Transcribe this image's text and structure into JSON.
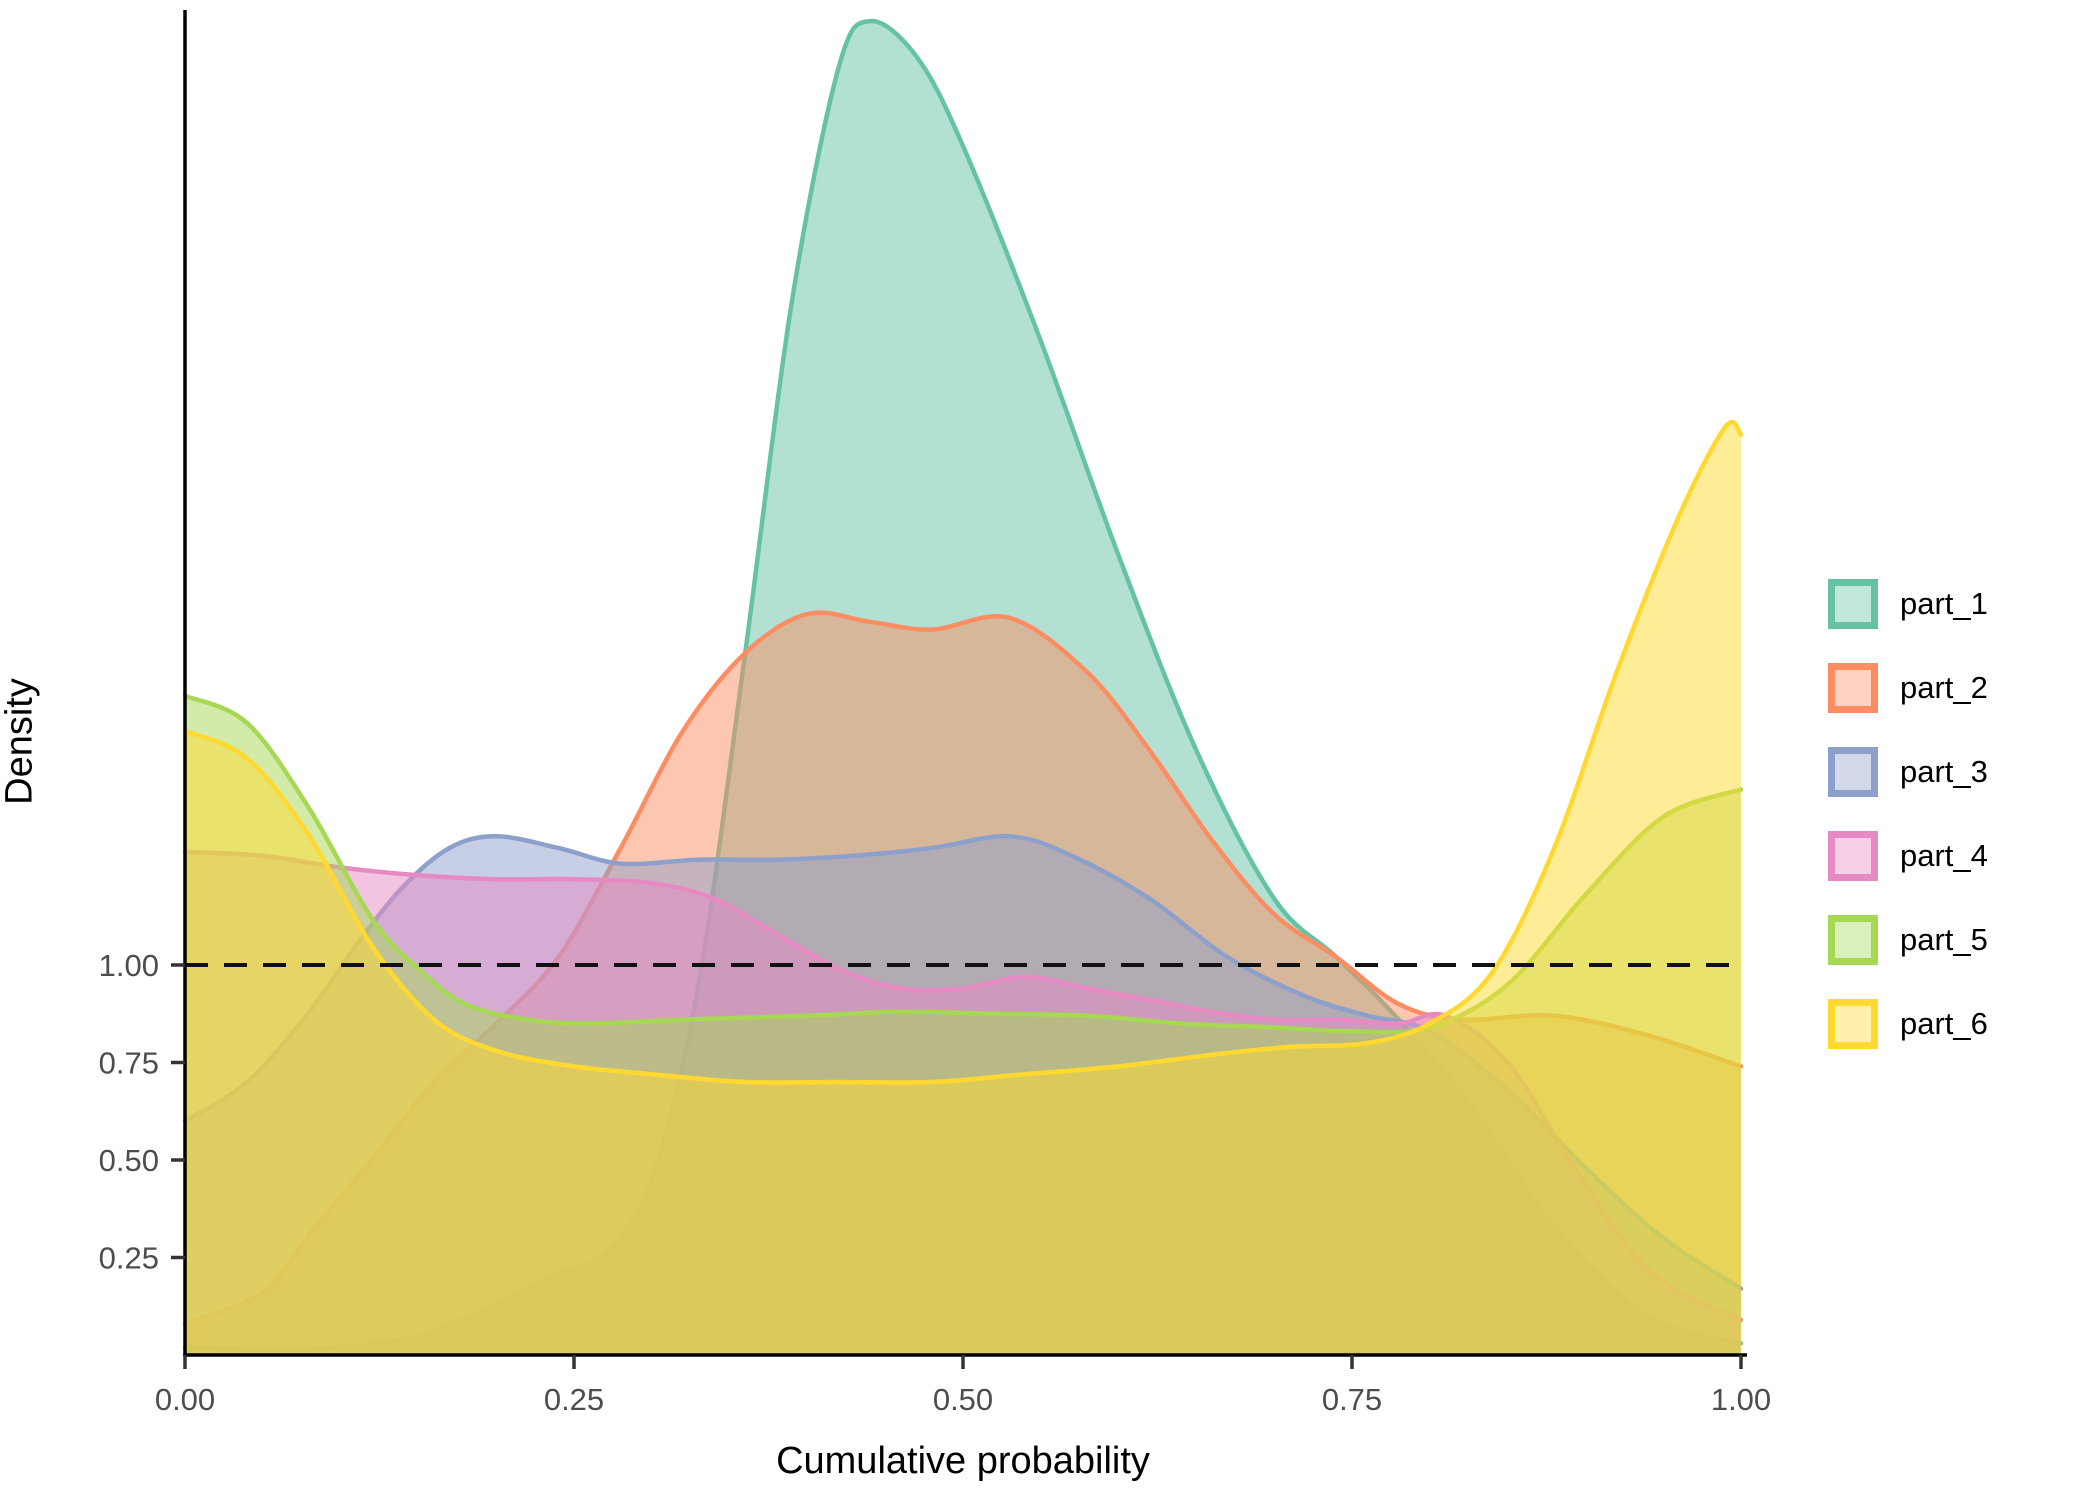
{
  "chart_data": {
    "type": "area",
    "subtype": "density-overlay",
    "title": "",
    "xlabel": "Cumulative probability",
    "ylabel": "Density",
    "xlim": [
      0,
      1
    ],
    "ylim": [
      0,
      3.47
    ],
    "grid": false,
    "legend_position": "right",
    "x_ticks": [
      {
        "value": 0.0,
        "label": "0.00"
      },
      {
        "value": 0.25,
        "label": "0.25"
      },
      {
        "value": 0.5,
        "label": "0.50"
      },
      {
        "value": 0.75,
        "label": "0.75"
      },
      {
        "value": 1.0,
        "label": "1.00"
      }
    ],
    "y_ticks": [
      {
        "value": 0.25,
        "label": "0.25"
      },
      {
        "value": 0.5,
        "label": "0.50"
      },
      {
        "value": 0.75,
        "label": "0.75"
      },
      {
        "value": 1.0,
        "label": "1.00"
      }
    ],
    "reference_hline": {
      "y": 1.0,
      "style": "dashed",
      "color": "#111111"
    },
    "fill_alpha": 0.5,
    "series": [
      {
        "name": "part_1",
        "color": "#66C2A5",
        "points": [
          [
            0,
            0.02
          ],
          [
            0.05,
            0.015
          ],
          [
            0.1,
            0.02
          ],
          [
            0.15,
            0.05
          ],
          [
            0.2,
            0.13
          ],
          [
            0.24,
            0.21
          ],
          [
            0.27,
            0.26
          ],
          [
            0.3,
            0.45
          ],
          [
            0.33,
            0.95
          ],
          [
            0.36,
            1.8
          ],
          [
            0.39,
            2.7
          ],
          [
            0.42,
            3.3
          ],
          [
            0.44,
            3.42
          ],
          [
            0.47,
            3.33
          ],
          [
            0.5,
            3.1
          ],
          [
            0.55,
            2.6
          ],
          [
            0.6,
            2.05
          ],
          [
            0.65,
            1.55
          ],
          [
            0.7,
            1.17
          ],
          [
            0.74,
            1.02
          ],
          [
            0.78,
            0.86
          ],
          [
            0.83,
            0.62
          ],
          [
            0.88,
            0.33
          ],
          [
            0.94,
            0.1
          ],
          [
            1.0,
            0.03
          ]
        ]
      },
      {
        "name": "part_2",
        "color": "#FC8D62",
        "points": [
          [
            0,
            0.08
          ],
          [
            0.05,
            0.16
          ],
          [
            0.08,
            0.31
          ],
          [
            0.12,
            0.5
          ],
          [
            0.16,
            0.7
          ],
          [
            0.2,
            0.85
          ],
          [
            0.24,
            1.02
          ],
          [
            0.28,
            1.3
          ],
          [
            0.32,
            1.6
          ],
          [
            0.36,
            1.8
          ],
          [
            0.4,
            1.9
          ],
          [
            0.44,
            1.88
          ],
          [
            0.48,
            1.86
          ],
          [
            0.53,
            1.89
          ],
          [
            0.58,
            1.75
          ],
          [
            0.62,
            1.55
          ],
          [
            0.66,
            1.32
          ],
          [
            0.7,
            1.13
          ],
          [
            0.74,
            1.02
          ],
          [
            0.78,
            0.9
          ],
          [
            0.82,
            0.86
          ],
          [
            0.88,
            0.87
          ],
          [
            0.94,
            0.82
          ],
          [
            1.0,
            0.74
          ]
        ]
      },
      {
        "name": "part_3",
        "color": "#8DA0CB",
        "points": [
          [
            0,
            0.6
          ],
          [
            0.04,
            0.7
          ],
          [
            0.08,
            0.88
          ],
          [
            0.11,
            1.05
          ],
          [
            0.14,
            1.2
          ],
          [
            0.17,
            1.3
          ],
          [
            0.2,
            1.33
          ],
          [
            0.24,
            1.3
          ],
          [
            0.28,
            1.26
          ],
          [
            0.33,
            1.27
          ],
          [
            0.38,
            1.27
          ],
          [
            0.43,
            1.28
          ],
          [
            0.48,
            1.3
          ],
          [
            0.53,
            1.33
          ],
          [
            0.57,
            1.28
          ],
          [
            0.62,
            1.17
          ],
          [
            0.67,
            1.02
          ],
          [
            0.72,
            0.92
          ],
          [
            0.76,
            0.87
          ],
          [
            0.8,
            0.83
          ],
          [
            0.85,
            0.68
          ],
          [
            0.9,
            0.48
          ],
          [
            0.95,
            0.3
          ],
          [
            1.0,
            0.17
          ]
        ]
      },
      {
        "name": "part_4",
        "color": "#E78AC3",
        "points": [
          [
            0,
            1.29
          ],
          [
            0.05,
            1.28
          ],
          [
            0.1,
            1.25
          ],
          [
            0.15,
            1.23
          ],
          [
            0.2,
            1.22
          ],
          [
            0.25,
            1.22
          ],
          [
            0.3,
            1.21
          ],
          [
            0.34,
            1.17
          ],
          [
            0.38,
            1.08
          ],
          [
            0.42,
            0.99
          ],
          [
            0.46,
            0.94
          ],
          [
            0.5,
            0.94
          ],
          [
            0.54,
            0.97
          ],
          [
            0.58,
            0.94
          ],
          [
            0.62,
            0.91
          ],
          [
            0.66,
            0.88
          ],
          [
            0.7,
            0.86
          ],
          [
            0.74,
            0.86
          ],
          [
            0.78,
            0.85
          ],
          [
            0.81,
            0.87
          ],
          [
            0.85,
            0.75
          ],
          [
            0.89,
            0.5
          ],
          [
            0.94,
            0.22
          ],
          [
            1.0,
            0.09
          ]
        ]
      },
      {
        "name": "part_5",
        "color": "#A6D854",
        "points": [
          [
            0,
            1.69
          ],
          [
            0.04,
            1.62
          ],
          [
            0.08,
            1.4
          ],
          [
            0.12,
            1.12
          ],
          [
            0.15,
            0.99
          ],
          [
            0.18,
            0.9
          ],
          [
            0.22,
            0.86
          ],
          [
            0.26,
            0.85
          ],
          [
            0.32,
            0.86
          ],
          [
            0.4,
            0.87
          ],
          [
            0.46,
            0.88
          ],
          [
            0.52,
            0.875
          ],
          [
            0.58,
            0.87
          ],
          [
            0.64,
            0.85
          ],
          [
            0.7,
            0.84
          ],
          [
            0.75,
            0.83
          ],
          [
            0.8,
            0.84
          ],
          [
            0.85,
            0.95
          ],
          [
            0.9,
            1.18
          ],
          [
            0.95,
            1.38
          ],
          [
            1.0,
            1.45
          ]
        ]
      },
      {
        "name": "part_6",
        "color": "#FFD92F",
        "points": [
          [
            0,
            1.6
          ],
          [
            0.04,
            1.53
          ],
          [
            0.08,
            1.33
          ],
          [
            0.12,
            1.05
          ],
          [
            0.16,
            0.86
          ],
          [
            0.2,
            0.78
          ],
          [
            0.25,
            0.74
          ],
          [
            0.3,
            0.72
          ],
          [
            0.36,
            0.7
          ],
          [
            0.42,
            0.7
          ],
          [
            0.48,
            0.7
          ],
          [
            0.54,
            0.72
          ],
          [
            0.6,
            0.74
          ],
          [
            0.66,
            0.77
          ],
          [
            0.71,
            0.79
          ],
          [
            0.76,
            0.8
          ],
          [
            0.8,
            0.85
          ],
          [
            0.84,
            0.98
          ],
          [
            0.88,
            1.3
          ],
          [
            0.92,
            1.75
          ],
          [
            0.96,
            2.15
          ],
          [
            0.99,
            2.38
          ],
          [
            1.0,
            2.36
          ]
        ]
      }
    ]
  },
  "axes": {
    "x_title": "Cumulative probability",
    "y_title": "Density",
    "tick_color": "#4d4d4d"
  },
  "legend": {
    "items": [
      {
        "label": "part_1",
        "color": "#66C2A5"
      },
      {
        "label": "part_2",
        "color": "#FC8D62"
      },
      {
        "label": "part_3",
        "color": "#8DA0CB"
      },
      {
        "label": "part_4",
        "color": "#E78AC3"
      },
      {
        "label": "part_5",
        "color": "#A6D854"
      },
      {
        "label": "part_6",
        "color": "#FFD92F"
      }
    ]
  }
}
